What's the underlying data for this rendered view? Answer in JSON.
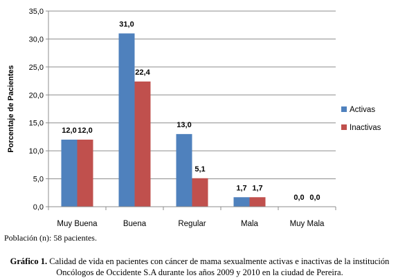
{
  "chart_data": {
    "type": "bar",
    "categories": [
      "Muy Buena",
      "Buena",
      "Regular",
      "Mala",
      "Muy Mala"
    ],
    "series": [
      {
        "name": "Activas",
        "values": [
          12.0,
          31.0,
          13.0,
          1.7,
          0.0
        ],
        "labels": [
          "12,0",
          "31,0",
          "13,0",
          "1,7",
          "0,0"
        ],
        "color": "#4f81bd"
      },
      {
        "name": "Inactivas",
        "values": [
          12.0,
          22.4,
          5.1,
          1.7,
          0.0
        ],
        "labels": [
          "12,0",
          "22,4",
          "5,1",
          "1,7",
          "0,0"
        ],
        "color": "#c0504d"
      }
    ],
    "ylabel": "Porcentaje de Pacientes",
    "xlabel": "",
    "ylim": [
      0,
      35
    ],
    "yticks": [
      0,
      5,
      10,
      15,
      20,
      25,
      30,
      35
    ],
    "ytick_labels": [
      "0,0",
      "5,0",
      "10,0",
      "15,0",
      "20,0",
      "25,0",
      "30,0",
      "35,0"
    ],
    "grid": true,
    "legend_position": "right"
  },
  "note": "Población (n): 58 pacientes.",
  "caption": {
    "label": "Gráfico 1.",
    "text": " Calidad de vida en pacientes con cáncer de mama sexualmente activas e inactivas de la institución Oncólogos de Occidente S.A durante los años 2009 y 2010 en la ciudad de Pereira."
  }
}
